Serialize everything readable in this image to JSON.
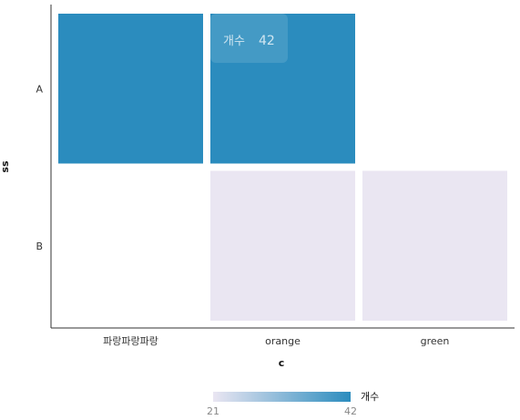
{
  "chart_data": {
    "type": "heatmap",
    "x": {
      "title": "c",
      "categories": [
        "파랑파랑파랑",
        "orange",
        "green"
      ]
    },
    "y": {
      "title": "ss",
      "categories": [
        "A",
        "B"
      ]
    },
    "cells": [
      {
        "x": "파랑파랑파랑",
        "y": "A",
        "value": 42
      },
      {
        "x": "orange",
        "y": "A",
        "value": 42
      },
      {
        "x": "orange",
        "y": "B",
        "value": 21
      },
      {
        "x": "green",
        "y": "B",
        "value": 21
      }
    ],
    "color_scale": {
      "low": "#eae6f2",
      "high": "#2b8cbe",
      "domain": [
        21,
        42
      ]
    },
    "legend": {
      "title": "개수",
      "min_label": "21",
      "max_label": "42",
      "placement": "bottom"
    },
    "tooltip": {
      "label": "개수",
      "value": "42"
    }
  }
}
